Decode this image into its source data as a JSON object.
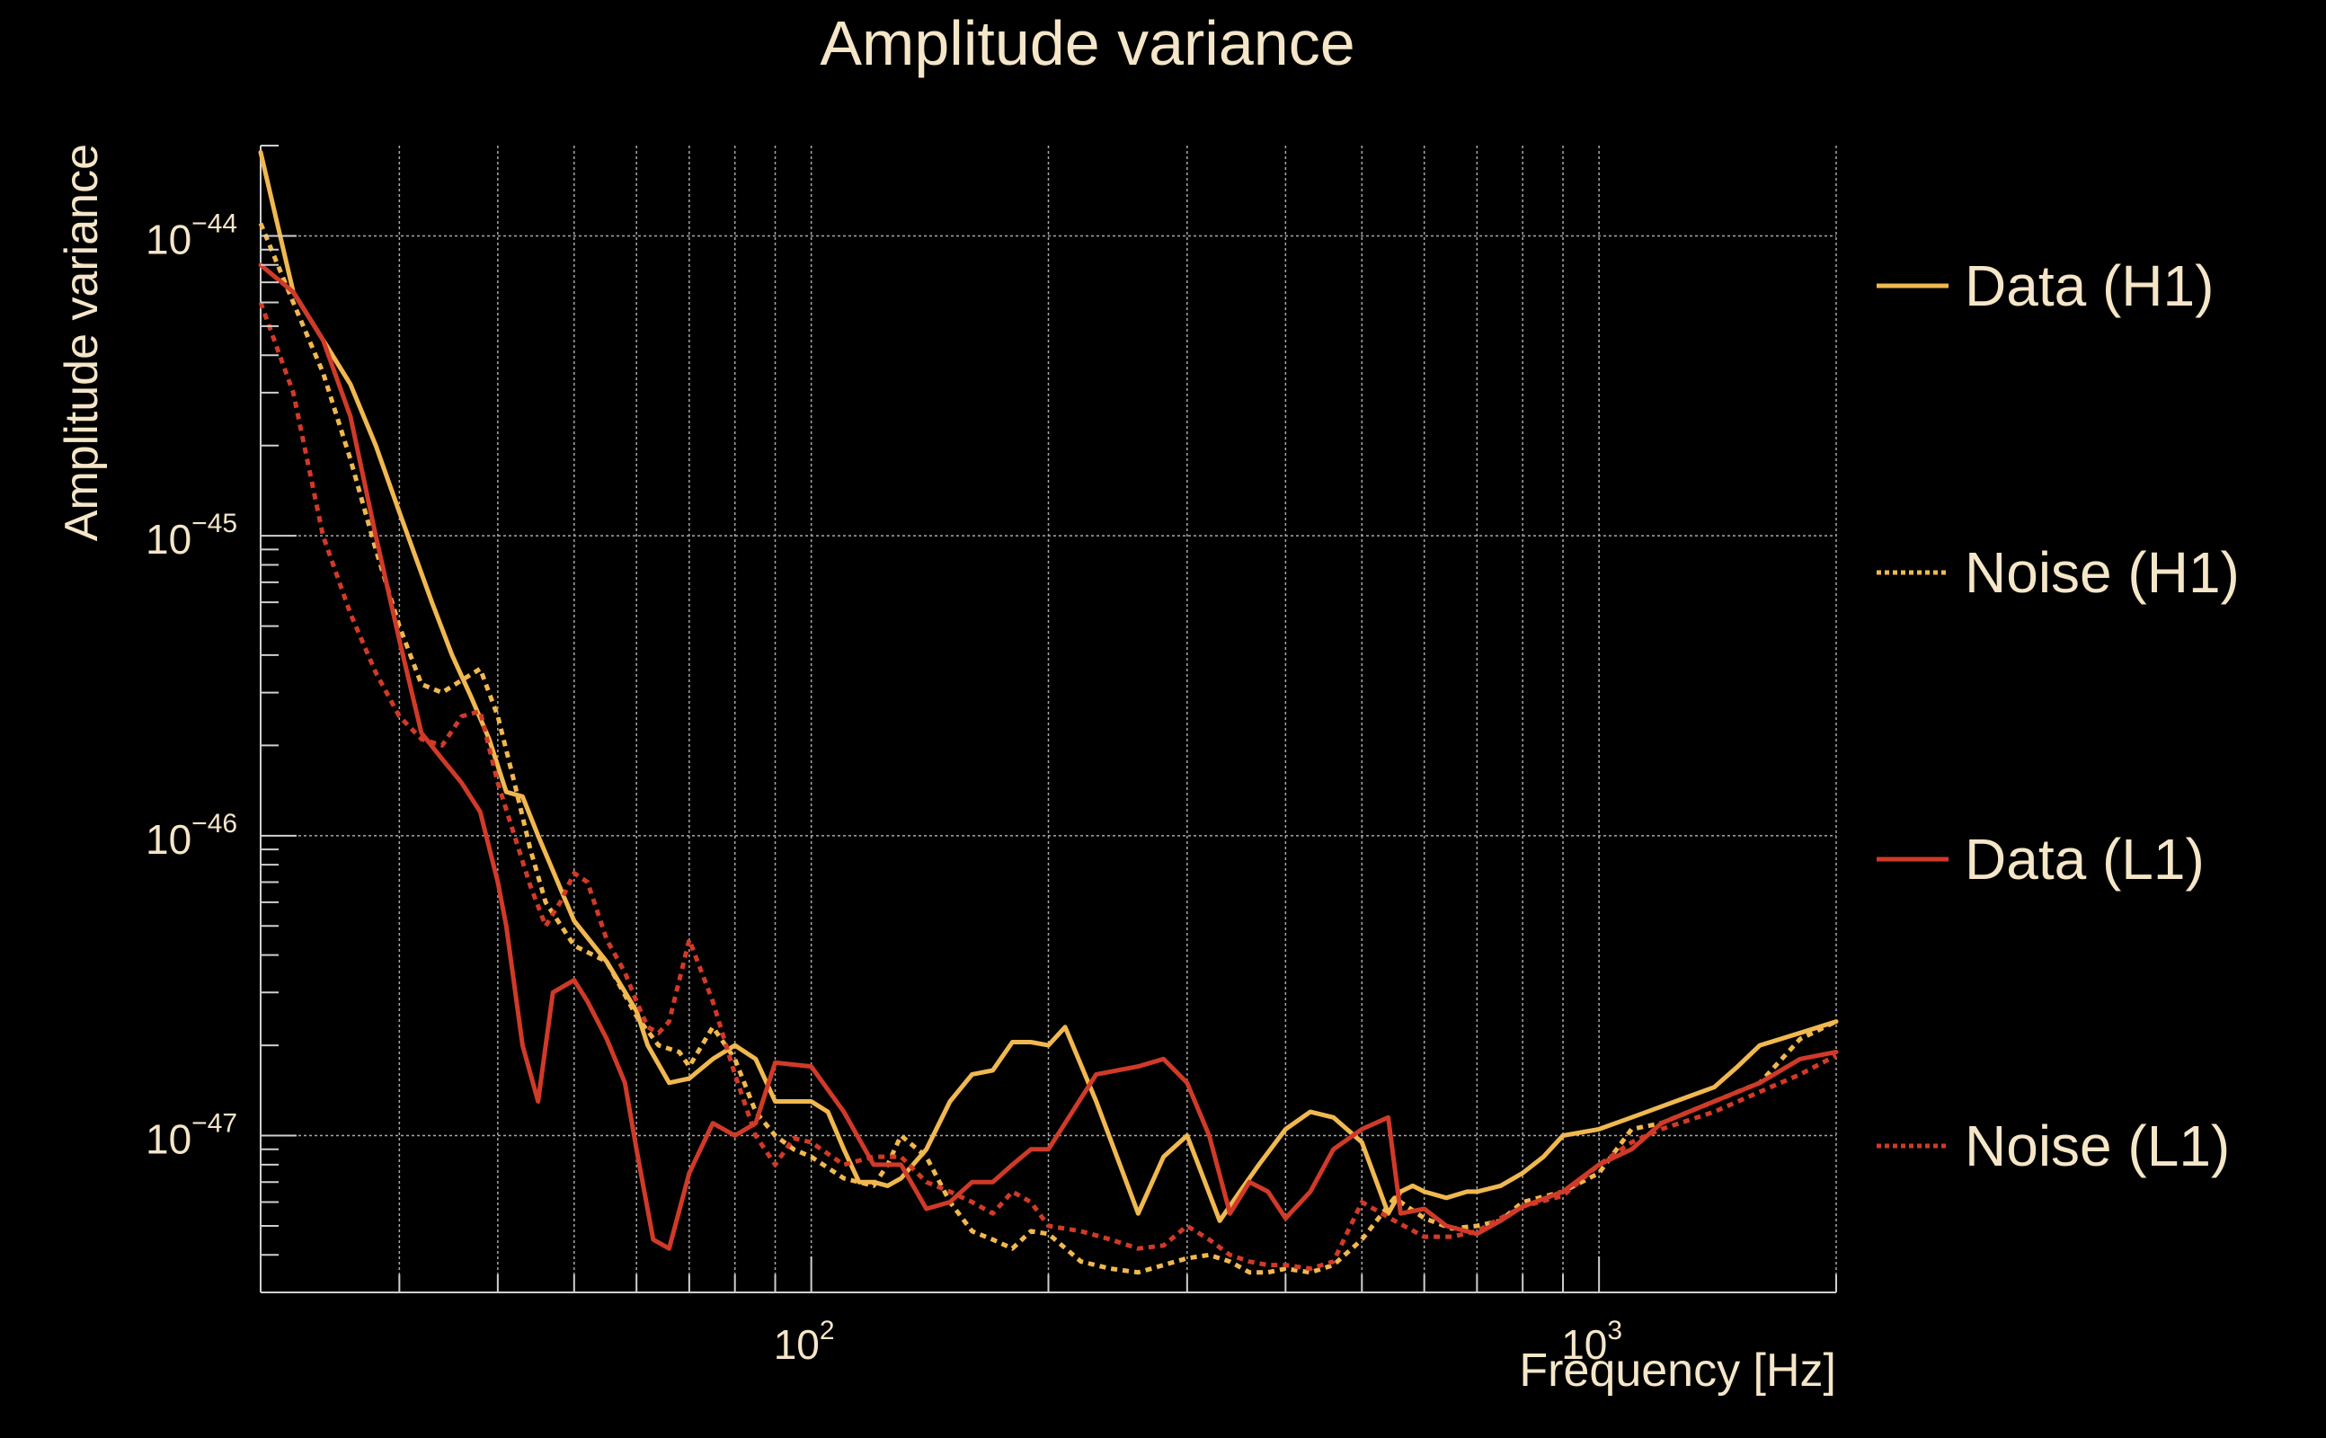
{
  "chart_data": {
    "type": "line",
    "title": "Amplitude variance",
    "xlabel": "Frequency [Hz]",
    "ylabel": "Amplitude variance",
    "xscale": "log",
    "yscale": "log",
    "xlim": [
      20,
      2000
    ],
    "ylim": [
      3e-48,
      2e-44
    ],
    "xticks": [
      {
        "base": "10",
        "exp": "2",
        "value": 100
      },
      {
        "base": "10",
        "exp": "3",
        "value": 1000
      }
    ],
    "yticks": [
      {
        "base": "10",
        "exp": "−44",
        "value": 1e-44
      },
      {
        "base": "10",
        "exp": "−45",
        "value": 1e-45
      },
      {
        "base": "10",
        "exp": "−46",
        "value": 1e-46
      },
      {
        "base": "10",
        "exp": "−47",
        "value": 1e-47
      }
    ],
    "grid": true,
    "legend_position": "right",
    "series": [
      {
        "name": "Data (H1)",
        "color": "#f0b850",
        "dash": "solid",
        "x": [
          20,
          22,
          24,
          26,
          28,
          30,
          33,
          35,
          37,
          39,
          41,
          43,
          45,
          50,
          55,
          60,
          62,
          66,
          70,
          75,
          80,
          85,
          90,
          95,
          100,
          105,
          110,
          115,
          120,
          125,
          130,
          140,
          150,
          160,
          170,
          180,
          190,
          200,
          210,
          230,
          260,
          280,
          300,
          310,
          330,
          350,
          370,
          400,
          430,
          460,
          500,
          540,
          560,
          580,
          600,
          640,
          680,
          700,
          750,
          800,
          850,
          900,
          1000,
          1100,
          1200,
          1300,
          1400,
          1500,
          1600,
          1800,
          2000
        ],
        "y": [
          1.9e-44,
          6.5e-45,
          4.5e-45,
          3.2e-45,
          2e-45,
          1.2e-45,
          6e-46,
          4e-46,
          2.9e-46,
          2.1e-46,
          1.4e-46,
          1.35e-46,
          1e-46,
          5.2e-47,
          3.8e-47,
          2.6e-47,
          2e-47,
          1.5e-47,
          1.55e-47,
          1.8e-47,
          2e-47,
          1.8e-47,
          1.3e-47,
          1.3e-47,
          1.3e-47,
          1.2e-47,
          9e-48,
          7e-48,
          7e-48,
          6.8e-48,
          7.2e-48,
          9e-48,
          1.3e-47,
          1.6e-47,
          1.65e-47,
          2.05e-47,
          2.05e-47,
          2e-47,
          2.3e-47,
          1.3e-47,
          5.5e-48,
          8.5e-48,
          1e-47,
          8e-48,
          5.2e-48,
          6.5e-48,
          8e-48,
          1.05e-47,
          1.2e-47,
          1.15e-47,
          9.5e-48,
          5.5e-48,
          6.5e-48,
          6.8e-48,
          6.5e-48,
          6.2e-48,
          6.5e-48,
          6.5e-48,
          6.8e-48,
          7.5e-48,
          8.5e-48,
          1e-47,
          1.05e-47,
          1.15e-47,
          1.25e-47,
          1.35e-47,
          1.45e-47,
          1.7e-47,
          2e-47,
          2.2e-47,
          2.4e-47
        ]
      },
      {
        "name": "Noise (H1)",
        "color": "#f0b850",
        "dash": "dotted",
        "x": [
          20,
          22,
          24,
          26,
          28,
          30,
          32,
          34,
          36,
          38,
          40,
          42,
          44,
          46,
          50,
          55,
          60,
          64,
          68,
          70,
          75,
          80,
          85,
          90,
          95,
          100,
          110,
          120,
          125,
          130,
          140,
          150,
          160,
          170,
          180,
          190,
          200,
          220,
          240,
          260,
          280,
          300,
          320,
          340,
          360,
          380,
          400,
          430,
          460,
          500,
          550,
          600,
          650,
          700,
          750,
          800,
          900,
          1000,
          1100,
          1200,
          1400,
          1600,
          1800,
          2000
        ],
        "y": [
          1.1e-44,
          6e-45,
          3.5e-45,
          1.8e-45,
          9e-46,
          5e-46,
          3.2e-46,
          3e-46,
          3.3e-46,
          3.6e-46,
          2.5e-46,
          1.5e-46,
          9e-47,
          6e-47,
          4.3e-47,
          3.8e-47,
          2.5e-47,
          2e-47,
          1.9e-47,
          1.7e-47,
          2.3e-47,
          1.8e-47,
          1.2e-47,
          1e-47,
          9e-48,
          8.5e-48,
          7.2e-48,
          6.8e-48,
          8e-48,
          1e-47,
          8.5e-48,
          6e-48,
          4.8e-48,
          4.5e-48,
          4.2e-48,
          4.8e-48,
          4.7e-48,
          3.8e-48,
          3.6e-48,
          3.5e-48,
          3.7e-48,
          3.9e-48,
          4e-48,
          3.8e-48,
          3.5e-48,
          3.5e-48,
          3.6e-48,
          3.5e-48,
          3.7e-48,
          4.5e-48,
          6.2e-48,
          5.3e-48,
          4.9e-48,
          5e-48,
          5.2e-48,
          6e-48,
          6.5e-48,
          7.5e-48,
          1.05e-47,
          1.1e-47,
          1.3e-47,
          1.5e-47,
          2.1e-47,
          2.4e-47
        ]
      },
      {
        "name": "Data (L1)",
        "color": "#d03a28",
        "dash": "solid",
        "x": [
          20,
          22,
          24,
          26,
          28,
          30,
          32,
          34,
          36,
          38,
          40,
          41,
          43,
          45,
          47,
          50,
          52,
          55,
          58,
          60,
          63,
          66,
          70,
          75,
          80,
          85,
          90,
          100,
          110,
          120,
          130,
          140,
          150,
          160,
          170,
          180,
          190,
          200,
          210,
          230,
          260,
          280,
          300,
          320,
          340,
          360,
          380,
          400,
          430,
          460,
          500,
          540,
          560,
          600,
          640,
          700,
          750,
          800,
          900,
          1000,
          1100,
          1200,
          1400,
          1600,
          1800,
          2000
        ],
        "y": [
          8e-45,
          6.5e-45,
          4.5e-45,
          2.5e-45,
          1e-45,
          4.5e-46,
          2.2e-46,
          1.8e-46,
          1.5e-46,
          1.2e-46,
          7e-47,
          5e-47,
          2e-47,
          1.3e-47,
          3e-47,
          3.3e-47,
          2.8e-47,
          2.1e-47,
          1.5e-47,
          9e-48,
          4.5e-48,
          4.2e-48,
          7.5e-48,
          1.1e-47,
          1e-47,
          1.1e-47,
          1.75e-47,
          1.7e-47,
          1.2e-47,
          8e-48,
          8e-48,
          5.7e-48,
          6e-48,
          7e-48,
          7e-48,
          8e-48,
          9e-48,
          9e-48,
          1.1e-47,
          1.6e-47,
          1.7e-47,
          1.8e-47,
          1.5e-47,
          1e-47,
          5.5e-48,
          7e-48,
          6.5e-48,
          5.3e-48,
          6.5e-48,
          9e-48,
          1.05e-47,
          1.15e-47,
          5.5e-48,
          5.7e-48,
          5e-48,
          4.7e-48,
          5.2e-48,
          5.8e-48,
          6.5e-48,
          8e-48,
          9e-48,
          1.1e-47,
          1.3e-47,
          1.5e-47,
          1.8e-47,
          1.9e-47
        ]
      },
      {
        "name": "Noise (L1)",
        "color": "#d03a28",
        "dash": "dotted",
        "x": [
          20,
          22,
          24,
          26,
          28,
          30,
          32,
          34,
          36,
          38,
          40,
          42,
          44,
          46,
          48,
          50,
          52,
          55,
          58,
          60,
          62,
          64,
          66,
          70,
          75,
          80,
          85,
          90,
          95,
          100,
          110,
          120,
          130,
          140,
          150,
          160,
          170,
          180,
          190,
          200,
          220,
          240,
          260,
          280,
          300,
          320,
          340,
          360,
          380,
          400,
          430,
          460,
          500,
          550,
          600,
          650,
          700,
          750,
          800,
          900,
          1000,
          1100,
          1200,
          1400,
          1600,
          1800,
          2000
        ],
        "y": [
          6e-45,
          3e-45,
          1e-45,
          5.5e-46,
          3.5e-46,
          2.5e-46,
          2.1e-46,
          2e-46,
          2.5e-46,
          2.6e-46,
          1.5e-46,
          1e-46,
          6.8e-47,
          5e-47,
          6e-47,
          7.5e-47,
          7e-47,
          4.5e-47,
          3.5e-47,
          2.8e-47,
          2.3e-47,
          2.2e-47,
          2.4e-47,
          4.5e-47,
          2.8e-47,
          1.6e-47,
          1e-47,
          8e-48,
          9.8e-48,
          9.5e-48,
          8e-48,
          8.5e-48,
          8.5e-48,
          7e-48,
          6.5e-48,
          6e-48,
          5.5e-48,
          6.5e-48,
          6e-48,
          5e-48,
          4.8e-48,
          4.5e-48,
          4.2e-48,
          4.3e-48,
          5e-48,
          4.5e-48,
          4e-48,
          3.8e-48,
          3.7e-48,
          3.7e-48,
          3.6e-48,
          3.8e-48,
          6e-48,
          5.2e-48,
          4.6e-48,
          4.6e-48,
          4.8e-48,
          5.3e-48,
          5.8e-48,
          6.3e-48,
          8e-48,
          9.5e-48,
          1.05e-47,
          1.2e-47,
          1.4e-47,
          1.6e-47,
          1.85e-47
        ]
      }
    ]
  }
}
